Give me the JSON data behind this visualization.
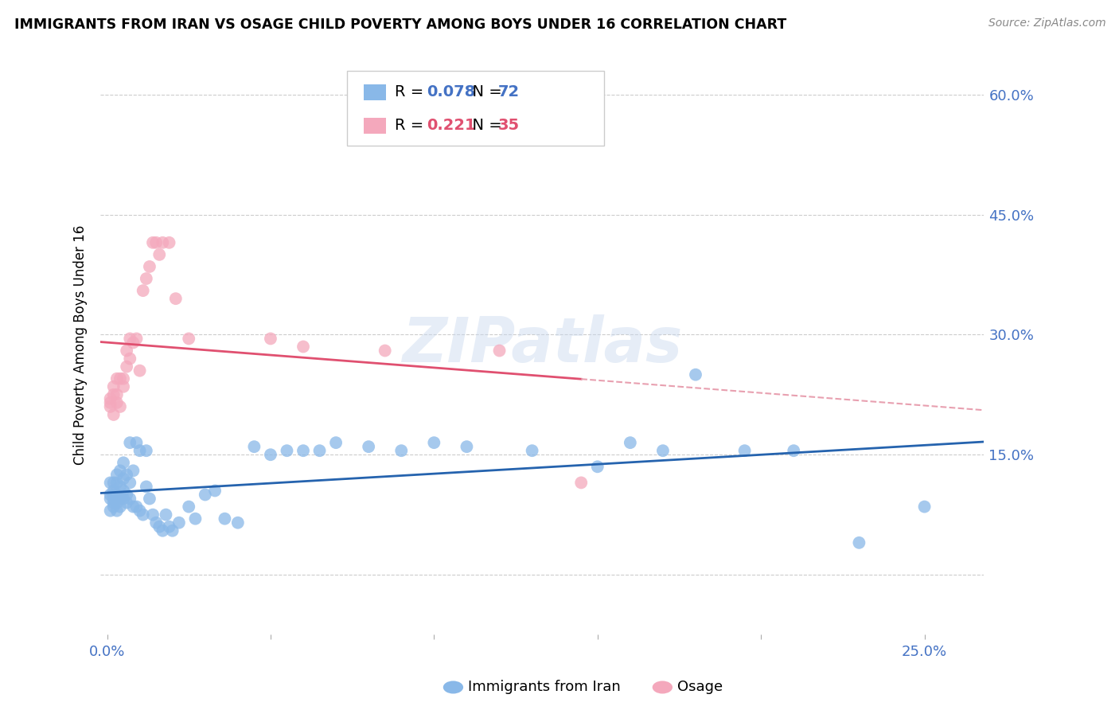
{
  "title": "IMMIGRANTS FROM IRAN VS OSAGE CHILD POVERTY AMONG BOYS UNDER 16 CORRELATION CHART",
  "source": "Source: ZipAtlas.com",
  "ylabel": "Child Poverty Among Boys Under 16",
  "xlim": [
    -0.002,
    0.268
  ],
  "ylim": [
    -0.075,
    0.65
  ],
  "x_ticks": [
    0.0,
    0.05,
    0.1,
    0.15,
    0.2,
    0.25
  ],
  "x_tick_labels": [
    "0.0%",
    "",
    "",
    "",
    "",
    "25.0%"
  ],
  "y_ticks": [
    0.0,
    0.15,
    0.3,
    0.45,
    0.6
  ],
  "y_tick_labels_right": [
    "",
    "15.0%",
    "30.0%",
    "45.0%",
    "60.0%"
  ],
  "blue_color": "#89B8E8",
  "pink_color": "#F4A8BC",
  "blue_line_color": "#2563AE",
  "pink_line_color": "#E05070",
  "pink_dash_color": "#E8A0B0",
  "legend_R1": "0.078",
  "legend_N1": "72",
  "legend_R2": "0.221",
  "legend_N2": "35",
  "label1": "Immigrants from Iran",
  "label2": "Osage",
  "watermark": "ZIPatlas",
  "blue_points_x": [
    0.001,
    0.001,
    0.001,
    0.001,
    0.002,
    0.002,
    0.002,
    0.002,
    0.002,
    0.002,
    0.003,
    0.003,
    0.003,
    0.003,
    0.003,
    0.004,
    0.004,
    0.004,
    0.004,
    0.005,
    0.005,
    0.005,
    0.005,
    0.006,
    0.006,
    0.006,
    0.007,
    0.007,
    0.007,
    0.008,
    0.008,
    0.009,
    0.009,
    0.01,
    0.01,
    0.011,
    0.012,
    0.012,
    0.013,
    0.014,
    0.015,
    0.016,
    0.017,
    0.018,
    0.019,
    0.02,
    0.022,
    0.025,
    0.027,
    0.03,
    0.033,
    0.036,
    0.04,
    0.045,
    0.05,
    0.055,
    0.06,
    0.065,
    0.07,
    0.08,
    0.09,
    0.1,
    0.11,
    0.13,
    0.15,
    0.16,
    0.17,
    0.18,
    0.195,
    0.21,
    0.23,
    0.25
  ],
  "blue_points_y": [
    0.1,
    0.08,
    0.095,
    0.115,
    0.09,
    0.085,
    0.095,
    0.1,
    0.105,
    0.115,
    0.08,
    0.09,
    0.1,
    0.115,
    0.125,
    0.085,
    0.095,
    0.11,
    0.13,
    0.095,
    0.105,
    0.12,
    0.14,
    0.09,
    0.1,
    0.125,
    0.095,
    0.115,
    0.165,
    0.085,
    0.13,
    0.085,
    0.165,
    0.08,
    0.155,
    0.075,
    0.11,
    0.155,
    0.095,
    0.075,
    0.065,
    0.06,
    0.055,
    0.075,
    0.06,
    0.055,
    0.065,
    0.085,
    0.07,
    0.1,
    0.105,
    0.07,
    0.065,
    0.16,
    0.15,
    0.155,
    0.155,
    0.155,
    0.165,
    0.16,
    0.155,
    0.165,
    0.16,
    0.155,
    0.135,
    0.165,
    0.155,
    0.25,
    0.155,
    0.155,
    0.04,
    0.085
  ],
  "pink_points_x": [
    0.001,
    0.001,
    0.001,
    0.002,
    0.002,
    0.002,
    0.003,
    0.003,
    0.003,
    0.004,
    0.004,
    0.005,
    0.005,
    0.006,
    0.006,
    0.007,
    0.007,
    0.008,
    0.009,
    0.01,
    0.011,
    0.012,
    0.013,
    0.014,
    0.015,
    0.016,
    0.017,
    0.019,
    0.021,
    0.025,
    0.05,
    0.06,
    0.085,
    0.12,
    0.145
  ],
  "pink_points_y": [
    0.21,
    0.215,
    0.22,
    0.2,
    0.225,
    0.235,
    0.215,
    0.225,
    0.245,
    0.21,
    0.245,
    0.235,
    0.245,
    0.26,
    0.28,
    0.27,
    0.295,
    0.29,
    0.295,
    0.255,
    0.355,
    0.37,
    0.385,
    0.415,
    0.415,
    0.4,
    0.415,
    0.415,
    0.345,
    0.295,
    0.295,
    0.285,
    0.28,
    0.28,
    0.115
  ]
}
